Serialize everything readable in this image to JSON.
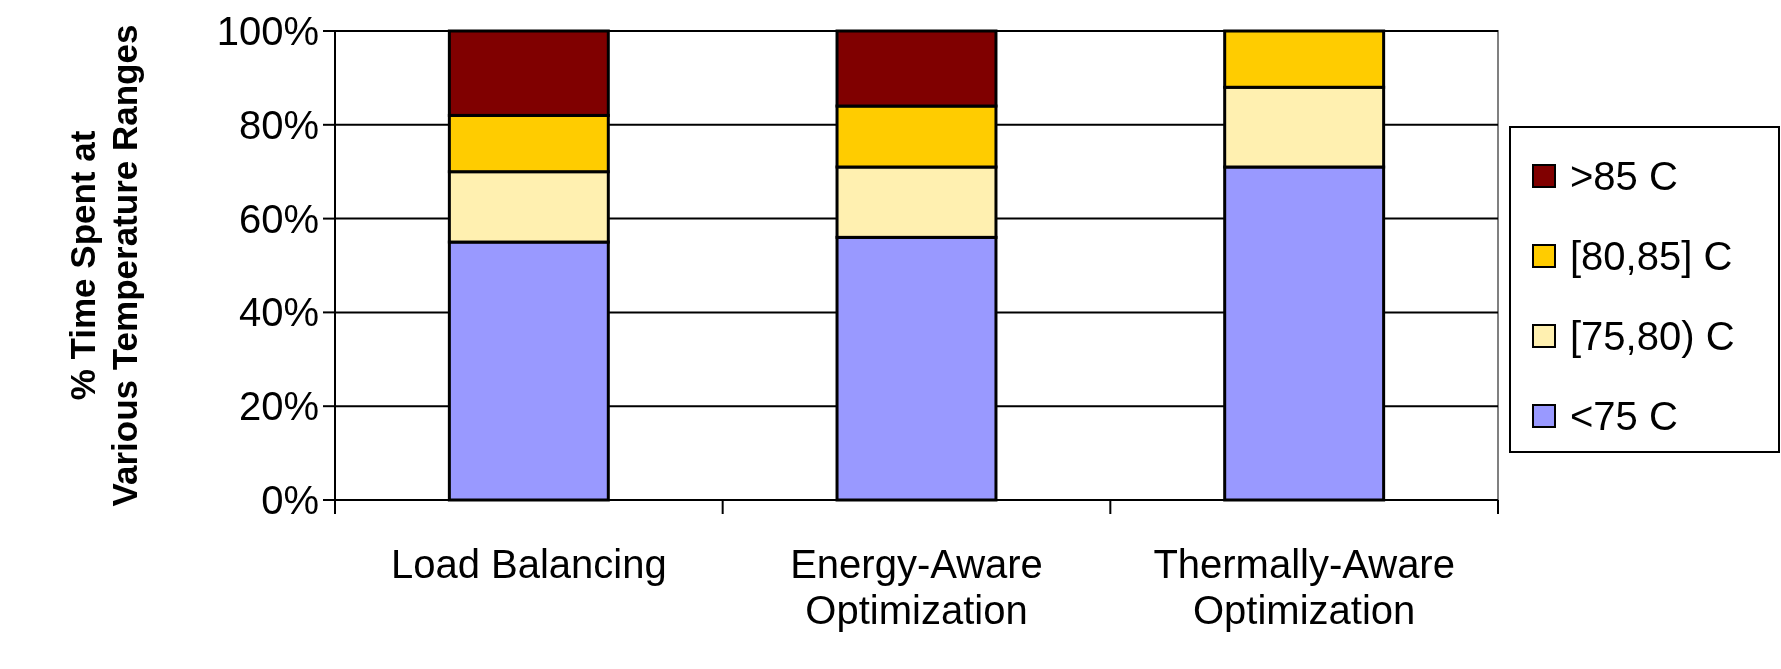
{
  "chart_data": {
    "type": "bar",
    "stacked": true,
    "ylabel": "% Time Spent at Various Temperature Ranges",
    "categories": [
      "Load Balancing",
      "Energy-Aware Optimization",
      "Thermally-Aware Optimization"
    ],
    "series": [
      {
        "name": "<75 C",
        "color": "#9999ff",
        "values": [
          55,
          56,
          71
        ]
      },
      {
        "name": "[75,80) C",
        "color": "#fff0b0",
        "values": [
          15,
          15,
          17
        ]
      },
      {
        "name": "[80,85] C",
        "color": "#ffcc00",
        "values": [
          12,
          13,
          12
        ]
      },
      {
        "name": ">85 C",
        "color": "#800000",
        "values": [
          18,
          16,
          0
        ]
      }
    ],
    "ylim": [
      0,
      100
    ],
    "yticks": [
      {
        "value": 0,
        "label": "0%"
      },
      {
        "value": 20,
        "label": "20%"
      },
      {
        "value": 40,
        "label": "40%"
      },
      {
        "value": 60,
        "label": "60%"
      },
      {
        "value": 80,
        "label": "80%"
      },
      {
        "value": 100,
        "label": "100%"
      }
    ],
    "grid": "y",
    "legend": "right"
  }
}
